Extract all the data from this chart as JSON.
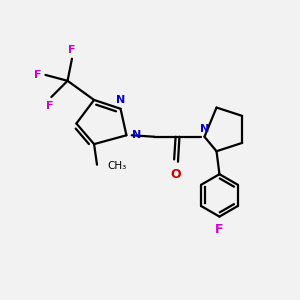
{
  "bg_color": "#f2f2f2",
  "bond_color": "#000000",
  "nitrogen_color": "#0000cc",
  "oxygen_color": "#cc0000",
  "fluorine_color": "#cc00cc",
  "line_width": 1.6,
  "fig_width": 3.0,
  "fig_height": 3.0,
  "dpi": 100,
  "xlim": [
    0,
    10
  ],
  "ylim": [
    0,
    10
  ]
}
